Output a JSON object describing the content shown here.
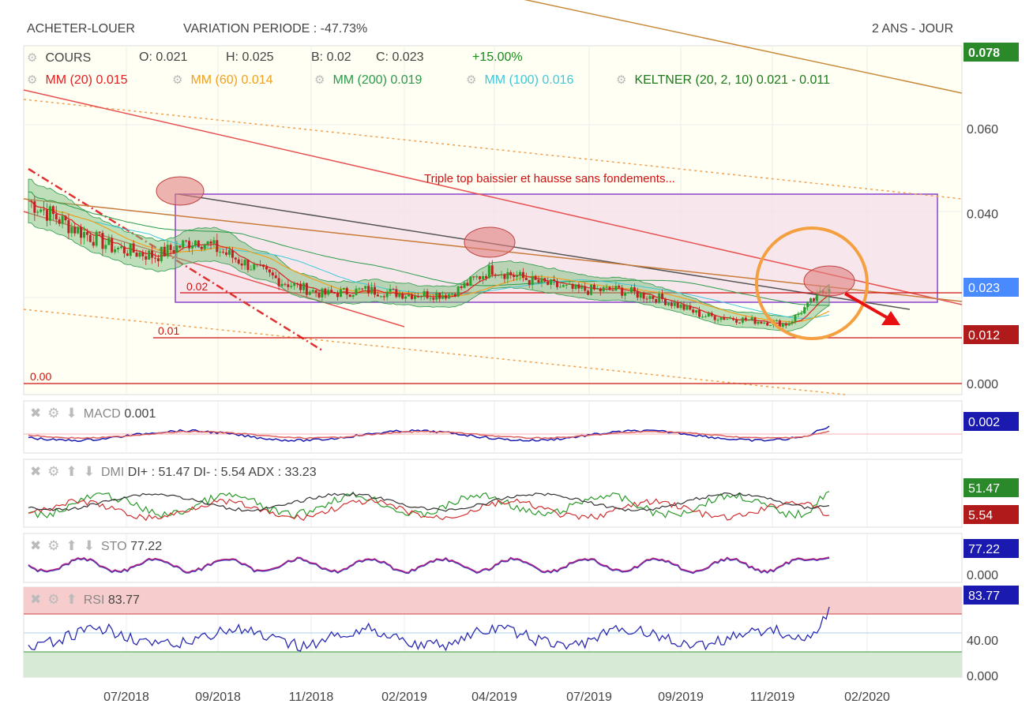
{
  "header": {
    "symbol": "ACHETER-LOUER",
    "variation": "VARIATION PERIODE : -47.73%",
    "period": "2 ANS - JOUR"
  },
  "ohlc": {
    "label": "COURS",
    "open": "O: 0.021",
    "high": "H: 0.025",
    "low": "B: 0.02",
    "close": "C: 0.023",
    "change": "+15.00%"
  },
  "indicators": [
    {
      "label": "MM (20)",
      "value": "0.015",
      "color": "#e02020"
    },
    {
      "label": "MM (60)",
      "value": "0.014",
      "color": "#f0a020"
    },
    {
      "label": "MM (200)",
      "value": "0.019",
      "color": "#2a9a4a"
    },
    {
      "label": "MM (100)",
      "value": "0.016",
      "color": "#40c8d8"
    },
    {
      "label": "KELTNER (20, 2, 10)",
      "value": "0.021 - 0.011",
      "color": "#1a7a1a"
    }
  ],
  "annotation": "Triple top baissier et hausse sans fondements...",
  "levels": [
    "0.02",
    "0.01",
    "0.00"
  ],
  "price_badges": {
    "top": "0.078",
    "last": "0.023",
    "support": "0.012"
  },
  "panels": {
    "macd": {
      "name": "MACD",
      "value": "0.001",
      "badge": "0.002"
    },
    "dmi": {
      "name": "DMI",
      "value": "DI+ : 51.47 DI- : 5.54 ADX : 33.23",
      "badge_plus": "51.47",
      "badge_minus": "5.54"
    },
    "sto": {
      "name": "STO",
      "value": "77.22",
      "badge": "77.22",
      "tick": "0.000"
    },
    "rsi": {
      "name": "RSI",
      "value": "83.77",
      "badge": "83.77",
      "tick_mid": "40.00",
      "tick_low": "0.000"
    }
  },
  "colors": {
    "macd": "#1a1ab0",
    "dmi_plus": "#2a9a2a",
    "dmi_minus": "#c03030",
    "badge_blue": "#1a1ab0",
    "badge_green": "#2a8a2a",
    "badge_red": "#b01a1a"
  },
  "chart_data": {
    "type": "line",
    "title": "ACHETER-LOUER",
    "x_ticks": [
      "07/2018",
      "09/2018",
      "11/2018",
      "02/2019",
      "04/2019",
      "07/2019",
      "09/2019",
      "11/2019",
      "02/2020"
    ],
    "y_ticks": [
      "0.060",
      "0.040",
      "0.000"
    ],
    "ylim": [
      0,
      0.078
    ],
    "series": [
      {
        "name": "COURS",
        "x": [
          "05/2018",
          "06/2018",
          "07/2018",
          "08/2018",
          "09/2018",
          "10/2018",
          "11/2018",
          "12/2018",
          "01/2019",
          "02/2019",
          "03/2019",
          "04/2019",
          "05/2019",
          "06/2019",
          "07/2019",
          "08/2019",
          "09/2019",
          "10/2019",
          "11/2019",
          "12/2019"
        ],
        "values": [
          0.043,
          0.037,
          0.032,
          0.03,
          0.034,
          0.029,
          0.024,
          0.021,
          0.022,
          0.021,
          0.021,
          0.027,
          0.024,
          0.022,
          0.022,
          0.02,
          0.016,
          0.015,
          0.014,
          0.023
        ]
      }
    ]
  }
}
